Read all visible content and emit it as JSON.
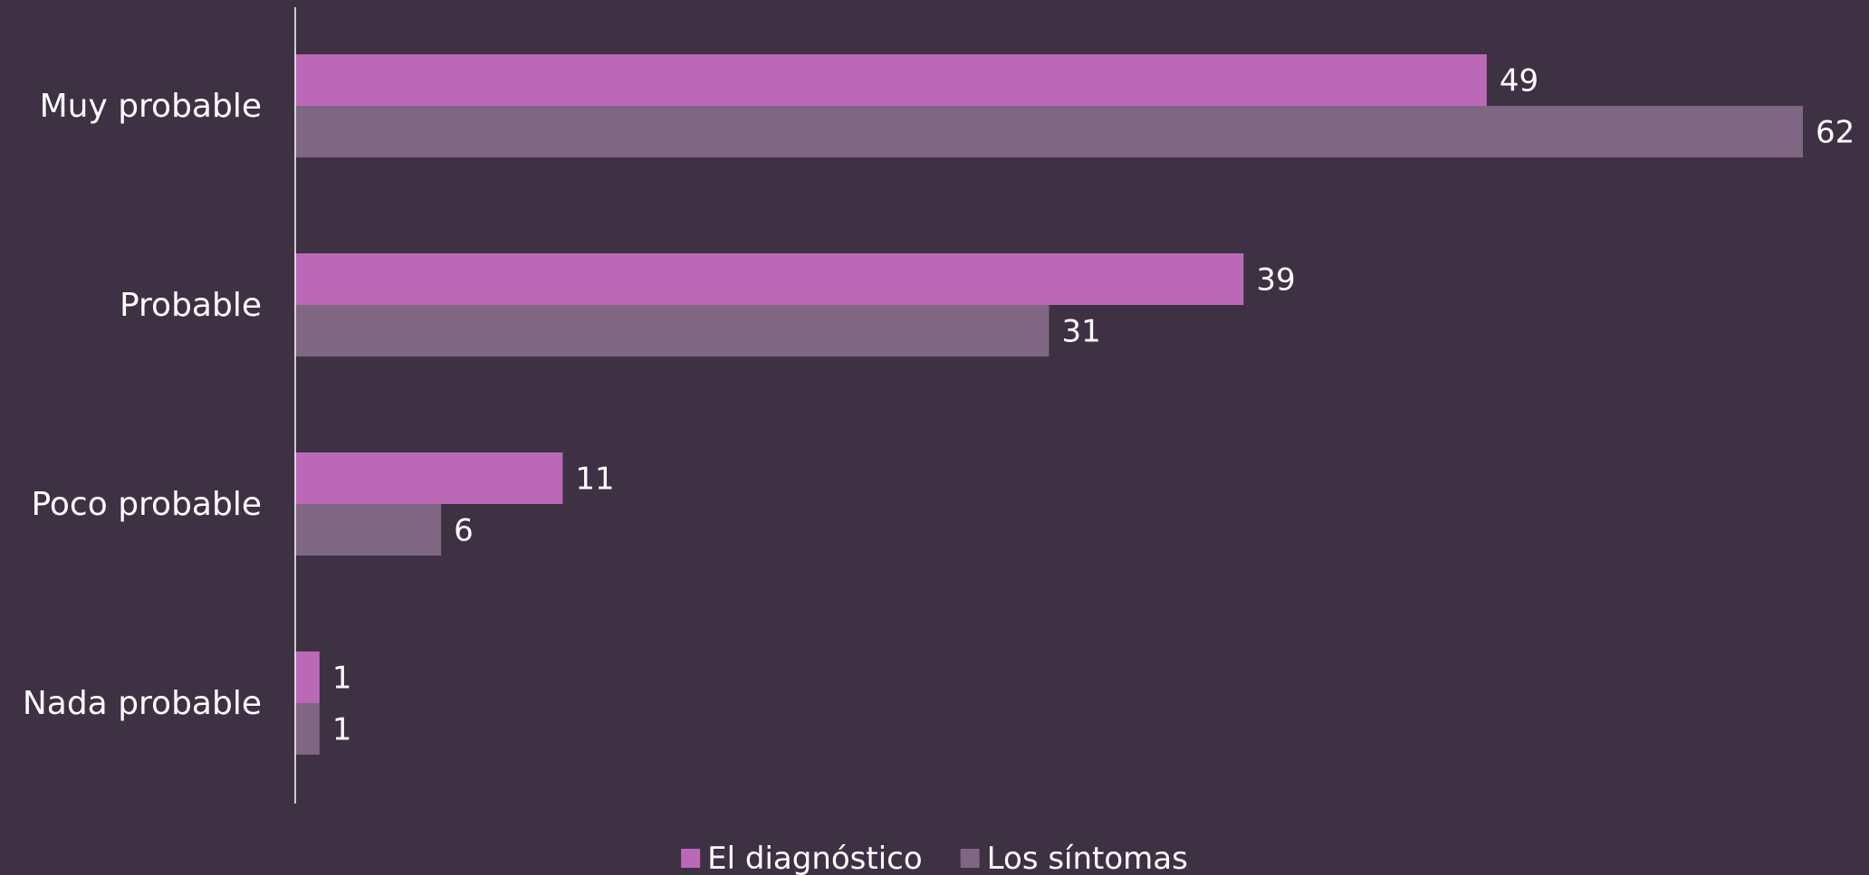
{
  "chart_data": {
    "type": "bar",
    "orientation": "horizontal",
    "categories": [
      "Muy probable",
      "Probable",
      "Poco probable",
      "Nada probable"
    ],
    "series": [
      {
        "name": "El diagnóstico",
        "values": [
          49,
          39,
          11,
          1
        ],
        "color": "#bb69b7"
      },
      {
        "name": "Los síntomas",
        "values": [
          62,
          31,
          6,
          1
        ],
        "color": "#7f6683"
      }
    ],
    "xlim": [
      0,
      62
    ],
    "grid": false,
    "legend_position": "bottom",
    "background": "#3e3144"
  }
}
